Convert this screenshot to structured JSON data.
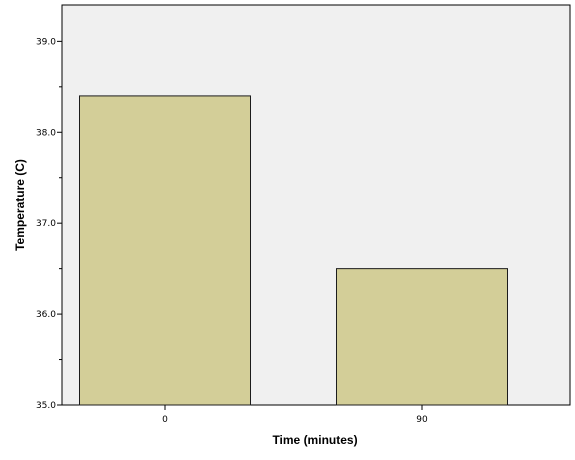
{
  "chart_data": {
    "type": "bar",
    "categories": [
      "0",
      "90"
    ],
    "values": [
      38.4,
      36.5
    ],
    "title": "",
    "xlabel": "Time (minutes)",
    "ylabel": "Temperature (C)",
    "ylim": [
      35.0,
      39.4
    ],
    "yticks": [
      "35.0",
      "36.0",
      "37.0",
      "38.0",
      "39.0"
    ],
    "grid": false,
    "legend": "none",
    "colors": {
      "plot_background": "#f0f0f0",
      "bar_fill": "#d3ce98",
      "bar_stroke": "#1c1c1c"
    }
  }
}
